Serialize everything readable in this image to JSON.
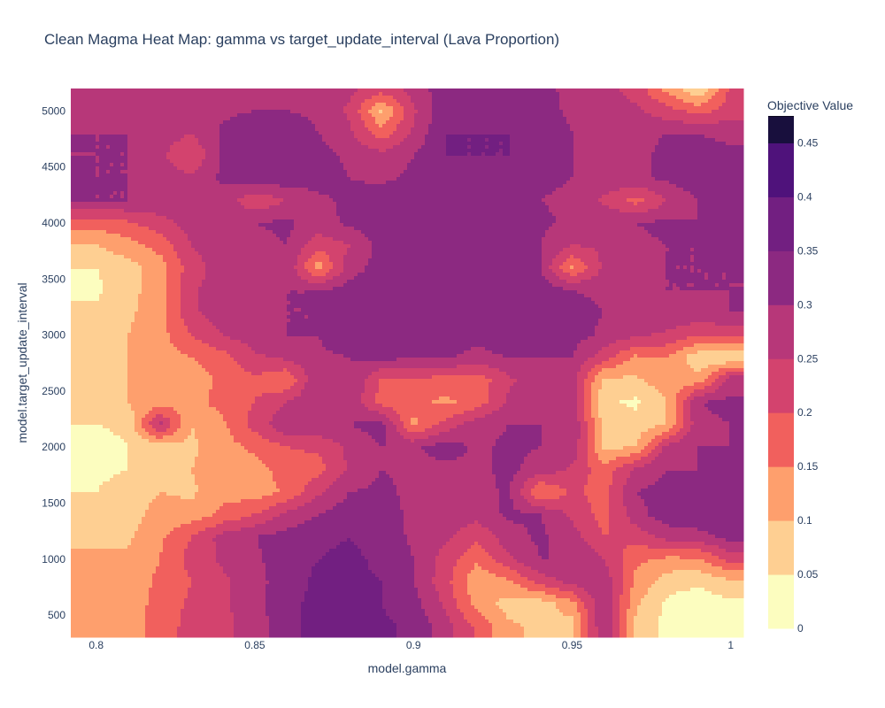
{
  "chart_data": {
    "type": "heatmap",
    "subtype": "contour",
    "title": "Clean Magma Heat Map: gamma vs target_update_interval (Lava Proportion)",
    "xlabel": "model.gamma",
    "ylabel": "model.target_update_interval",
    "xlim": [
      0.792,
      1.004
    ],
    "ylim": [
      320,
      5200
    ],
    "x_ticks": [
      0.8,
      0.85,
      0.9,
      0.95,
      1
    ],
    "x_tick_labels": [
      "0.8",
      "0.85",
      "0.9",
      "0.95",
      "1"
    ],
    "y_ticks": [
      500,
      1000,
      1500,
      2000,
      2500,
      3000,
      3500,
      4000,
      4500,
      5000
    ],
    "y_tick_labels": [
      "500",
      "1000",
      "1500",
      "2000",
      "2500",
      "3000",
      "3500",
      "4000",
      "4500",
      "5000"
    ],
    "colorscale_name": "magma (reversed)",
    "colorbar": {
      "title": "Objective Value",
      "ticks": [
        0,
        0.05,
        0.1,
        0.15,
        0.2,
        0.25,
        0.3,
        0.35,
        0.4,
        0.45
      ],
      "tick_labels": [
        "0",
        "0.05",
        "0.1",
        "0.15",
        "0.2",
        "0.25",
        "0.3",
        "0.35",
        "0.4",
        "0.45"
      ],
      "range": [
        0,
        0.475
      ]
    },
    "levels": [
      {
        "min": 0.0,
        "max": 0.05,
        "color": "#fcfdbf"
      },
      {
        "min": 0.05,
        "max": 0.1,
        "color": "#fecf92"
      },
      {
        "min": 0.1,
        "max": 0.15,
        "color": "#fe9f6d"
      },
      {
        "min": 0.15,
        "max": 0.2,
        "color": "#f1605d"
      },
      {
        "min": 0.2,
        "max": 0.25,
        "color": "#d3436e"
      },
      {
        "min": 0.25,
        "max": 0.3,
        "color": "#b73779"
      },
      {
        "min": 0.3,
        "max": 0.35,
        "color": "#8c2981"
      },
      {
        "min": 0.35,
        "max": 0.4,
        "color": "#721f81"
      },
      {
        "min": 0.4,
        "max": 0.45,
        "color": "#4f127b"
      },
      {
        "min": 0.45,
        "max": 0.475,
        "color": "#180f3d"
      },
      {
        "min": 0.475,
        "max": 0.5,
        "color": "#000004"
      }
    ],
    "z_grid": {
      "x": [
        0.8,
        0.81,
        0.82,
        0.83,
        0.84,
        0.85,
        0.86,
        0.87,
        0.88,
        0.89,
        0.9,
        0.91,
        0.92,
        0.93,
        0.94,
        0.95,
        0.96,
        0.97,
        0.98,
        0.99,
        1.0
      ],
      "y": [
        400,
        600,
        800,
        1000,
        1200,
        1400,
        1600,
        1800,
        2000,
        2200,
        2400,
        2600,
        2800,
        3000,
        3200,
        3400,
        3600,
        3800,
        4000,
        4200,
        4400,
        4600,
        4800,
        5000,
        5200
      ],
      "z": [
        [
          0.13,
          0.13,
          0.17,
          0.22,
          0.24,
          0.27,
          0.34,
          0.36,
          0.36,
          0.36,
          0.34,
          0.27,
          0.19,
          0.11,
          0.09,
          0.08,
          0.3,
          0.09,
          0.03,
          0.02,
          0.03
        ],
        [
          0.13,
          0.12,
          0.17,
          0.21,
          0.24,
          0.28,
          0.34,
          0.36,
          0.36,
          0.35,
          0.32,
          0.24,
          0.13,
          0.08,
          0.07,
          0.13,
          0.3,
          0.11,
          0.04,
          0.02,
          0.04
        ],
        [
          0.12,
          0.12,
          0.16,
          0.2,
          0.24,
          0.28,
          0.33,
          0.36,
          0.36,
          0.35,
          0.3,
          0.22,
          0.11,
          0.14,
          0.22,
          0.27,
          0.29,
          0.14,
          0.07,
          0.06,
          0.09
        ],
        [
          0.11,
          0.11,
          0.15,
          0.22,
          0.26,
          0.29,
          0.33,
          0.35,
          0.36,
          0.34,
          0.3,
          0.23,
          0.16,
          0.24,
          0.3,
          0.3,
          0.25,
          0.16,
          0.14,
          0.14,
          0.22
        ],
        [
          0.09,
          0.09,
          0.14,
          0.2,
          0.27,
          0.3,
          0.32,
          0.34,
          0.35,
          0.33,
          0.29,
          0.26,
          0.21,
          0.28,
          0.31,
          0.27,
          0.2,
          0.22,
          0.27,
          0.28,
          0.32
        ],
        [
          0.06,
          0.08,
          0.12,
          0.12,
          0.16,
          0.2,
          0.26,
          0.3,
          0.33,
          0.32,
          0.29,
          0.28,
          0.27,
          0.31,
          0.3,
          0.24,
          0.18,
          0.28,
          0.33,
          0.34,
          0.33
        ],
        [
          0.05,
          0.07,
          0.1,
          0.09,
          0.14,
          0.12,
          0.16,
          0.24,
          0.3,
          0.31,
          0.29,
          0.28,
          0.28,
          0.31,
          0.14,
          0.21,
          0.18,
          0.3,
          0.32,
          0.32,
          0.32
        ],
        [
          0.04,
          0.05,
          0.08,
          0.1,
          0.13,
          0.13,
          0.17,
          0.18,
          0.26,
          0.3,
          0.29,
          0.28,
          0.29,
          0.31,
          0.28,
          0.24,
          0.17,
          0.26,
          0.3,
          0.3,
          0.31
        ],
        [
          0.03,
          0.05,
          0.07,
          0.09,
          0.13,
          0.16,
          0.2,
          0.21,
          0.26,
          0.3,
          0.29,
          0.33,
          0.29,
          0.31,
          0.3,
          0.29,
          0.09,
          0.1,
          0.27,
          0.3,
          0.3
        ],
        [
          0.05,
          0.06,
          0.27,
          0.1,
          0.14,
          0.22,
          0.29,
          0.29,
          0.3,
          0.32,
          0.14,
          0.22,
          0.28,
          0.3,
          0.3,
          0.3,
          0.08,
          0.07,
          0.1,
          0.29,
          0.3
        ],
        [
          0.08,
          0.1,
          0.13,
          0.13,
          0.17,
          0.2,
          0.25,
          0.3,
          0.29,
          0.18,
          0.16,
          0.14,
          0.17,
          0.26,
          0.3,
          0.28,
          0.06,
          0.04,
          0.1,
          0.3,
          0.31
        ],
        [
          0.09,
          0.1,
          0.13,
          0.11,
          0.17,
          0.19,
          0.15,
          0.3,
          0.3,
          0.19,
          0.19,
          0.18,
          0.17,
          0.24,
          0.28,
          0.27,
          0.09,
          0.09,
          0.13,
          0.12,
          0.28
        ],
        [
          0.09,
          0.1,
          0.13,
          0.15,
          0.18,
          0.24,
          0.26,
          0.29,
          0.3,
          0.32,
          0.3,
          0.31,
          0.28,
          0.3,
          0.3,
          0.3,
          0.22,
          0.14,
          0.15,
          0.06,
          0.05
        ],
        [
          0.08,
          0.1,
          0.13,
          0.2,
          0.25,
          0.28,
          0.3,
          0.3,
          0.34,
          0.34,
          0.35,
          0.33,
          0.32,
          0.34,
          0.33,
          0.32,
          0.29,
          0.26,
          0.24,
          0.2,
          0.21
        ],
        [
          0.06,
          0.09,
          0.13,
          0.24,
          0.28,
          0.3,
          0.3,
          0.3,
          0.34,
          0.34,
          0.35,
          0.34,
          0.34,
          0.35,
          0.33,
          0.32,
          0.3,
          0.29,
          0.29,
          0.29,
          0.3
        ],
        [
          0.04,
          0.08,
          0.13,
          0.24,
          0.28,
          0.29,
          0.3,
          0.3,
          0.32,
          0.33,
          0.34,
          0.34,
          0.34,
          0.34,
          0.33,
          0.3,
          0.29,
          0.3,
          0.3,
          0.3,
          0.3
        ],
        [
          0.05,
          0.08,
          0.12,
          0.23,
          0.27,
          0.27,
          0.3,
          0.12,
          0.28,
          0.32,
          0.33,
          0.33,
          0.33,
          0.34,
          0.3,
          0.14,
          0.26,
          0.29,
          0.3,
          0.3,
          0.3
        ],
        [
          0.1,
          0.13,
          0.17,
          0.25,
          0.28,
          0.28,
          0.3,
          0.22,
          0.25,
          0.32,
          0.32,
          0.32,
          0.32,
          0.33,
          0.3,
          0.25,
          0.26,
          0.29,
          0.3,
          0.3,
          0.31
        ],
        [
          0.17,
          0.19,
          0.23,
          0.27,
          0.29,
          0.3,
          0.31,
          0.28,
          0.31,
          0.33,
          0.33,
          0.33,
          0.33,
          0.33,
          0.31,
          0.29,
          0.3,
          0.3,
          0.31,
          0.3,
          0.31
        ],
        [
          0.3,
          0.3,
          0.29,
          0.26,
          0.28,
          0.21,
          0.25,
          0.29,
          0.31,
          0.33,
          0.33,
          0.33,
          0.33,
          0.32,
          0.3,
          0.29,
          0.24,
          0.18,
          0.25,
          0.3,
          0.31
        ],
        [
          0.3,
          0.3,
          0.28,
          0.26,
          0.31,
          0.33,
          0.33,
          0.32,
          0.3,
          0.29,
          0.31,
          0.34,
          0.34,
          0.33,
          0.31,
          0.3,
          0.29,
          0.29,
          0.31,
          0.34,
          0.32
        ],
        [
          0.3,
          0.3,
          0.26,
          0.2,
          0.31,
          0.34,
          0.34,
          0.32,
          0.29,
          0.27,
          0.3,
          0.35,
          0.35,
          0.35,
          0.32,
          0.3,
          0.29,
          0.29,
          0.31,
          0.33,
          0.32
        ],
        [
          0.3,
          0.3,
          0.28,
          0.25,
          0.31,
          0.34,
          0.34,
          0.3,
          0.26,
          0.17,
          0.26,
          0.35,
          0.35,
          0.35,
          0.33,
          0.3,
          0.29,
          0.29,
          0.3,
          0.3,
          0.28
        ],
        [
          0.29,
          0.29,
          0.29,
          0.28,
          0.29,
          0.3,
          0.3,
          0.29,
          0.24,
          0.09,
          0.24,
          0.34,
          0.35,
          0.34,
          0.32,
          0.29,
          0.28,
          0.26,
          0.22,
          0.18,
          0.23
        ],
        [
          0.29,
          0.29,
          0.29,
          0.29,
          0.29,
          0.29,
          0.29,
          0.28,
          0.26,
          0.23,
          0.27,
          0.33,
          0.34,
          0.33,
          0.31,
          0.29,
          0.27,
          0.23,
          0.13,
          0.05,
          0.21
        ]
      ]
    }
  }
}
